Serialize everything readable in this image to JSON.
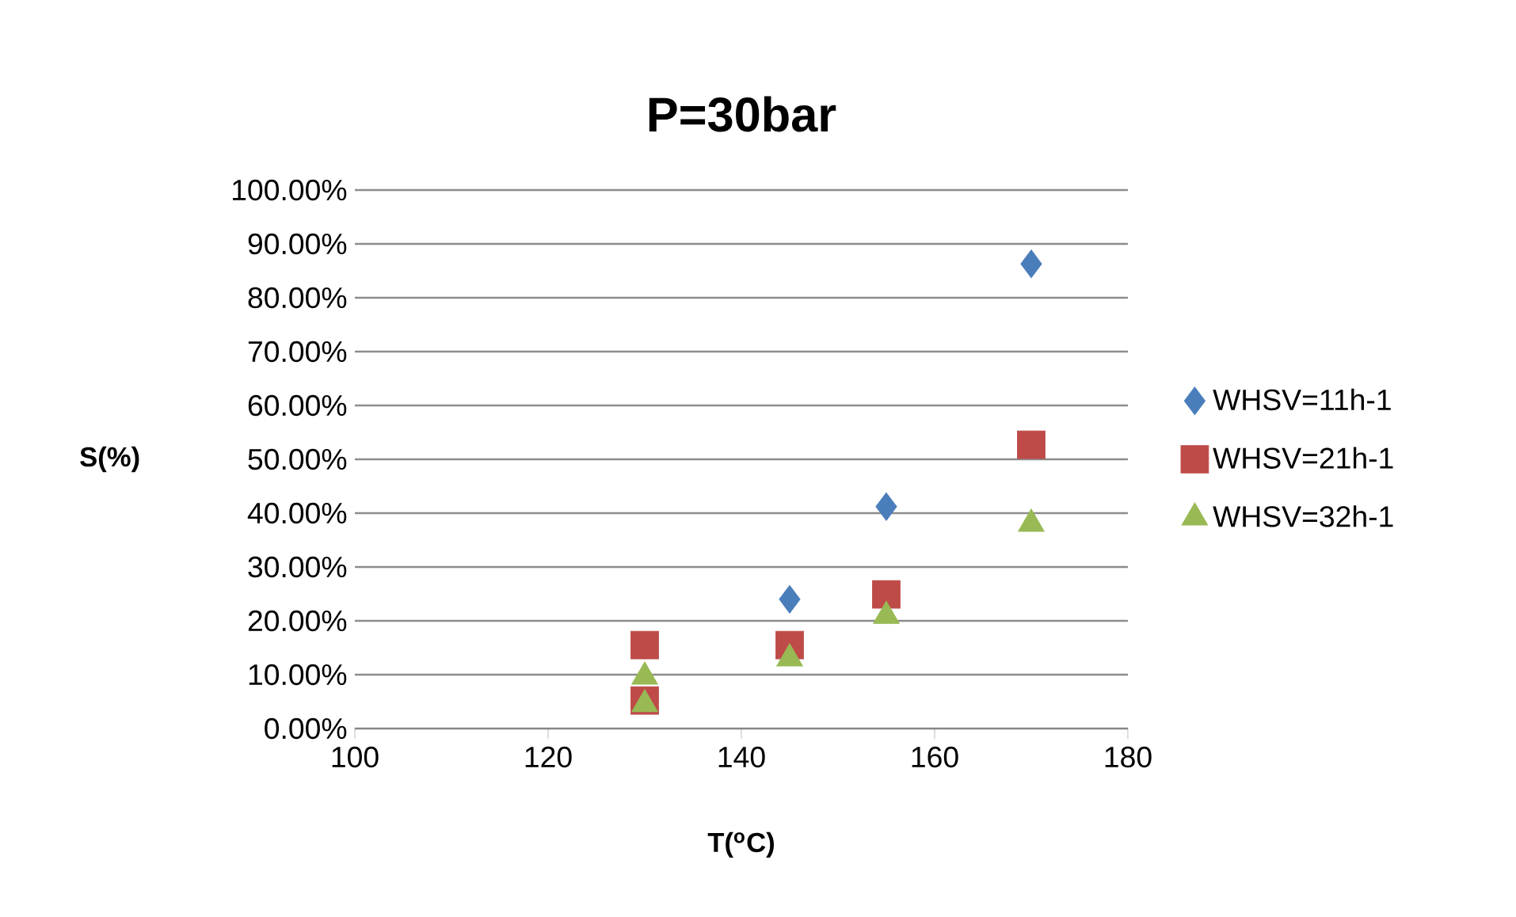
{
  "chart_data": {
    "type": "scatter",
    "title": "P=30bar",
    "xlabel": "T($^{o}$C)",
    "ylabel": "S(%)",
    "xlim": [
      100,
      180
    ],
    "xticks": [
      100,
      120,
      140,
      160,
      180
    ],
    "ylim": [
      0,
      1
    ],
    "yticks": [
      {
        "value": 0,
        "label": "0.00%"
      },
      {
        "value": 0.1,
        "label": "10.00%"
      },
      {
        "value": 0.2,
        "label": "20.00%"
      },
      {
        "value": 0.3,
        "label": "30.00%"
      },
      {
        "value": 0.4,
        "label": "40.00%"
      },
      {
        "value": 0.5,
        "label": "50.00%"
      },
      {
        "value": 0.6,
        "label": "60.00%"
      },
      {
        "value": 0.7,
        "label": "70.00%"
      },
      {
        "value": 0.8,
        "label": "80.00%"
      },
      {
        "value": 0.9,
        "label": "90.00%"
      },
      {
        "value": 1,
        "label": "100.00%"
      }
    ],
    "grid": "y",
    "legend": "right",
    "series": [
      {
        "name": "WHSV=11h-1",
        "color": "#4a7ebb",
        "marker": "diamond",
        "x": [
          145,
          155,
          170
        ],
        "values": [
          0.24,
          0.412,
          0.863
        ]
      },
      {
        "name": "WHSV=21h-1",
        "color": "#be4b48",
        "marker": "square",
        "x": [
          130,
          130,
          145,
          155,
          170
        ],
        "values": [
          0.155,
          0.052,
          0.155,
          0.249,
          0.527
        ]
      },
      {
        "name": "WHSV=32h-1",
        "color": "#98b954",
        "marker": "triangle",
        "x": [
          130,
          130,
          145,
          155,
          170
        ],
        "values": [
          0.096,
          0.045,
          0.13,
          0.209,
          0.38
        ]
      }
    ]
  }
}
